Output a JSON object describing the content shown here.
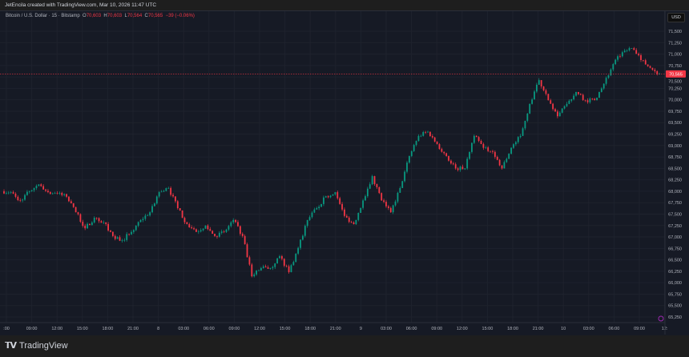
{
  "header": {
    "credit": "JetEncila created with TradingView.com, Mar 10, 2026 11:47 UTC"
  },
  "legend": {
    "symbol": "Bitcoin / U.S. Dollar · 15 · Bitstamp",
    "o_label": "O",
    "o": "70,603",
    "h_label": "H",
    "h": "70,603",
    "l_label": "L",
    "l": "70,564",
    "c_label": "C",
    "c": "70,565",
    "change": "−39 (−0.06%)"
  },
  "currency_button": "USD",
  "footer": {
    "brand": "TradingView",
    "logo": "TV"
  },
  "colors": {
    "background": "#161a25",
    "up": "#089981",
    "down": "#f23645",
    "grid": "#1e222d"
  },
  "chart_data": {
    "type": "candlestick",
    "interval": "15 min",
    "title": "Bitcoin / U.S. Dollar · 15 · Bitstamp",
    "y_ticks": [
      "71,500",
      "71,250",
      "71,000",
      "70,750",
      "70,500",
      "70,250",
      "70,000",
      "69,750",
      "69,500",
      "69,250",
      "69,000",
      "68,750",
      "68,500",
      "68,250",
      "68,000",
      "67,750",
      "67,500",
      "67,250",
      "67,000",
      "66,750",
      "66,500",
      "66,250",
      "66,000",
      "65,750",
      "65,500",
      "65,250"
    ],
    "ylim": [
      65250,
      71500
    ],
    "x_ticks": [
      ":00",
      "09:00",
      "12:00",
      "15:00",
      "18:00",
      "21:00",
      "8",
      "03:00",
      "06:00",
      "09:00",
      "12:00",
      "15:00",
      "18:00",
      "21:00",
      "9",
      "03:00",
      "06:00",
      "09:00",
      "12:00",
      "15:00",
      "18:00",
      "21:00",
      "10",
      "03:00",
      "06:00",
      "09:00",
      "12:"
    ],
    "last_price": 70565,
    "last_price_label": "70,565",
    "grid": true,
    "hourly_closes_from_mar7_0600": [
      67980,
      67800,
      68000,
      68150,
      67980,
      67950,
      67880,
      67540,
      67190,
      67420,
      67320,
      67020,
      66930,
      67110,
      67370,
      67540,
      67980,
      68070,
      67630,
      67280,
      67110,
      67250,
      67020,
      67110,
      67370,
      67020,
      66140,
      66320,
      66320,
      66580,
      66230,
      66760,
      67370,
      67630,
      67890,
      67980,
      67460,
      67280,
      67800,
      68330,
      67800,
      67540,
      68070,
      68770,
      69210,
      69300,
      69030,
      68770,
      68500,
      68500,
      69210,
      68950,
      68860,
      68500,
      68950,
      69210,
      69910,
      70430,
      69990,
      69640,
      69910,
      70170,
      69990,
      69990,
      70350,
      70780,
      71040,
      71130,
      70870,
      70700,
      70565
    ]
  }
}
